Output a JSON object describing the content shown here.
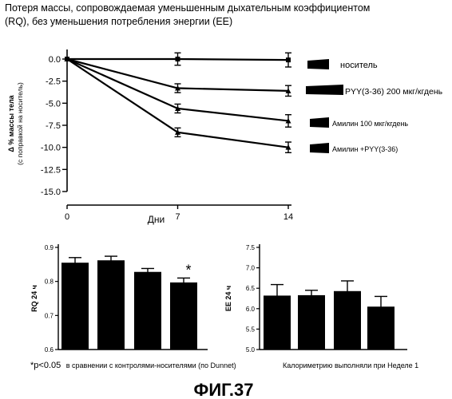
{
  "figure": {
    "title_lines": [
      "Потеря массы, сопровождаемая уменьшенным дыхательным коэффициентом",
      "(RQ), без уменьшения потребления энергии (EE)"
    ],
    "caption": "ФИГ.37",
    "footnote_left": {
      "prefix": "*p<0.05",
      "text": "в сравнении с контролями-носителями (по Dunnet)"
    },
    "footnote_right": "Калориметрию выполняли при Неделе 1"
  },
  "chart_data": [
    {
      "id": "weight-loss",
      "type": "line",
      "x": [
        0,
        7,
        14
      ],
      "xlabel": "Дни",
      "x_ticks": [
        "0",
        "7",
        "14"
      ],
      "ylabel_lines": [
        "Δ % массы тела",
        "(с поправкой на носитель)"
      ],
      "ylim": [
        -15.0,
        0.0
      ],
      "y_ticks": [
        "0.0",
        "-2.5",
        "-5.0",
        "-7.5",
        "-10.0",
        "-12.5",
        "-15.0"
      ],
      "legend_placement": "right",
      "series": [
        {
          "name": "носитель",
          "values": [
            0.0,
            0.0,
            -0.1
          ],
          "errors": [
            0,
            0.7,
            0.8
          ]
        },
        {
          "name": "PYY(3-36) 200 мкг/кгдень",
          "values": [
            0.0,
            -3.3,
            -3.6
          ],
          "errors": [
            0,
            0.5,
            0.6
          ]
        },
        {
          "name": "Амилин 100 мкг/кгдень",
          "values": [
            0.0,
            -5.6,
            -7.0
          ],
          "errors": [
            0,
            0.5,
            0.7
          ]
        },
        {
          "name": "Амилин +PYY(3-36)",
          "values": [
            0.0,
            -8.3,
            -10.0
          ],
          "errors": [
            0,
            0.5,
            0.6
          ]
        }
      ]
    },
    {
      "id": "rq",
      "type": "bar",
      "ylabel": "RQ 24 ч",
      "ylim": [
        0.6,
        0.9
      ],
      "y_ticks": [
        "0.9",
        "0.8",
        "0.7",
        "0.6"
      ],
      "values": [
        0.855,
        0.862,
        0.828,
        0.797
      ],
      "errors": [
        0.015,
        0.012,
        0.01,
        0.013
      ],
      "annotations": [
        "",
        "",
        "",
        "*"
      ]
    },
    {
      "id": "ee",
      "type": "bar",
      "ylabel": "EE 24 ч",
      "ylim": [
        5.0,
        7.5
      ],
      "y_ticks": [
        "7.5",
        "7.0",
        "6.5",
        "6.0",
        "5.5",
        "5.0"
      ],
      "values": [
        6.32,
        6.33,
        6.43,
        6.05
      ],
      "errors": [
        0.27,
        0.12,
        0.25,
        0.25
      ],
      "annotations": [
        "",
        "",
        "",
        ""
      ]
    }
  ],
  "colors": {
    "ink": "#000000",
    "bar_fill": "#000000"
  }
}
